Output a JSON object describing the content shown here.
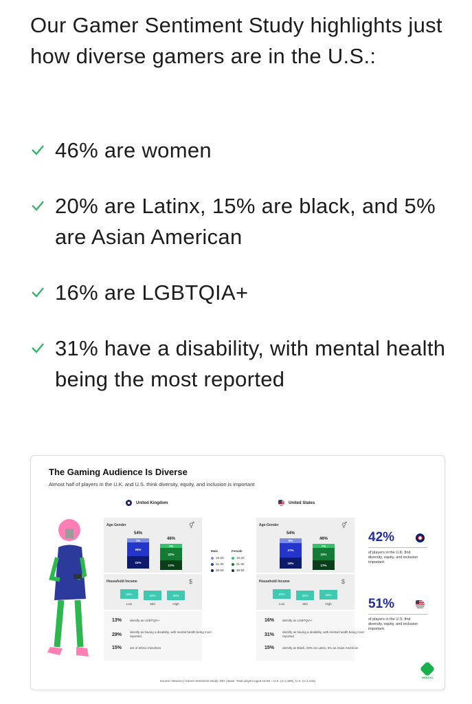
{
  "intro": "Our Gamer Sentiment Study highlights just how diverse gamers are in the U.S.:",
  "bullets": [
    "46% are women",
    "20% are Latinx, 15% are black, and 5% are Asian American",
    "16% are LGBTQIA+",
    "31% have a disability, with mental health being the most reported"
  ],
  "colors": {
    "check": "#2fb76a",
    "accent_blue": "#1f2ea3",
    "teal": "#3fc9b0"
  },
  "infographic": {
    "title": "The Gaming Audience Is Diverse",
    "subtitle": "Almost half of players in the U.K. and U.S. think diversity, equity, and inclusion is important",
    "uk": {
      "country": "United Kingdom",
      "age_gender_label": "Age-Gender",
      "male_total": "54%",
      "male_segments": [
        "7%",
        "26%",
        "22%"
      ],
      "female_total": "46%",
      "female_segments": [
        "7%",
        "22%",
        "17%"
      ],
      "income_label": "Household Income",
      "income": [
        {
          "value": "39%",
          "label": "Low"
        },
        {
          "value": "32%",
          "label": "Mid"
        },
        {
          "value": "30%",
          "label": "High"
        }
      ],
      "stats": [
        {
          "num": "13%",
          "text": "identify as LGBTQIA+"
        },
        {
          "num": "29%",
          "text": "identify as having a disability, with mental health being most reported"
        },
        {
          "num": "15%",
          "text": "are of ethnic minorities"
        }
      ]
    },
    "us": {
      "country": "United States",
      "age_gender_label": "Age-Gender",
      "male_total": "54%",
      "male_segments": [
        "8%",
        "27%",
        "19%"
      ],
      "female_total": "46%",
      "female_segments": [
        "7%",
        "22%",
        "17%"
      ],
      "income_label": "Household Income",
      "income": [
        {
          "value": "37%",
          "label": "Low"
        },
        {
          "value": "30%",
          "label": "Mid"
        },
        {
          "value": "33%",
          "label": "High"
        }
      ],
      "stats": [
        {
          "num": "16%",
          "text": "identify as LGBTQIA+"
        },
        {
          "num": "31%",
          "text": "identify as having a disability, with mental health being most reported"
        },
        {
          "num": "15%",
          "text": "identify as Black, 20% as Latinx, 5% as Asian American"
        }
      ]
    },
    "legend": {
      "male_title": "Male",
      "female_title": "Female",
      "ranges": [
        "16-20",
        "21-35",
        "36-50"
      ]
    },
    "side": [
      {
        "pct": "42%",
        "text": "of players in the U.K. find diversity, equity, and inclusion important."
      },
      {
        "pct": "51%",
        "text": "of players in the U.S. find diversity, equity, and inclusion important."
      }
    ],
    "source": "Source: Newzoo | Gamer Sentiment Study: DEI | Base: Total players aged 16-50 – U.K. (n=1,595), U.S. (n=1,615)",
    "brand": "NEWZOO"
  }
}
